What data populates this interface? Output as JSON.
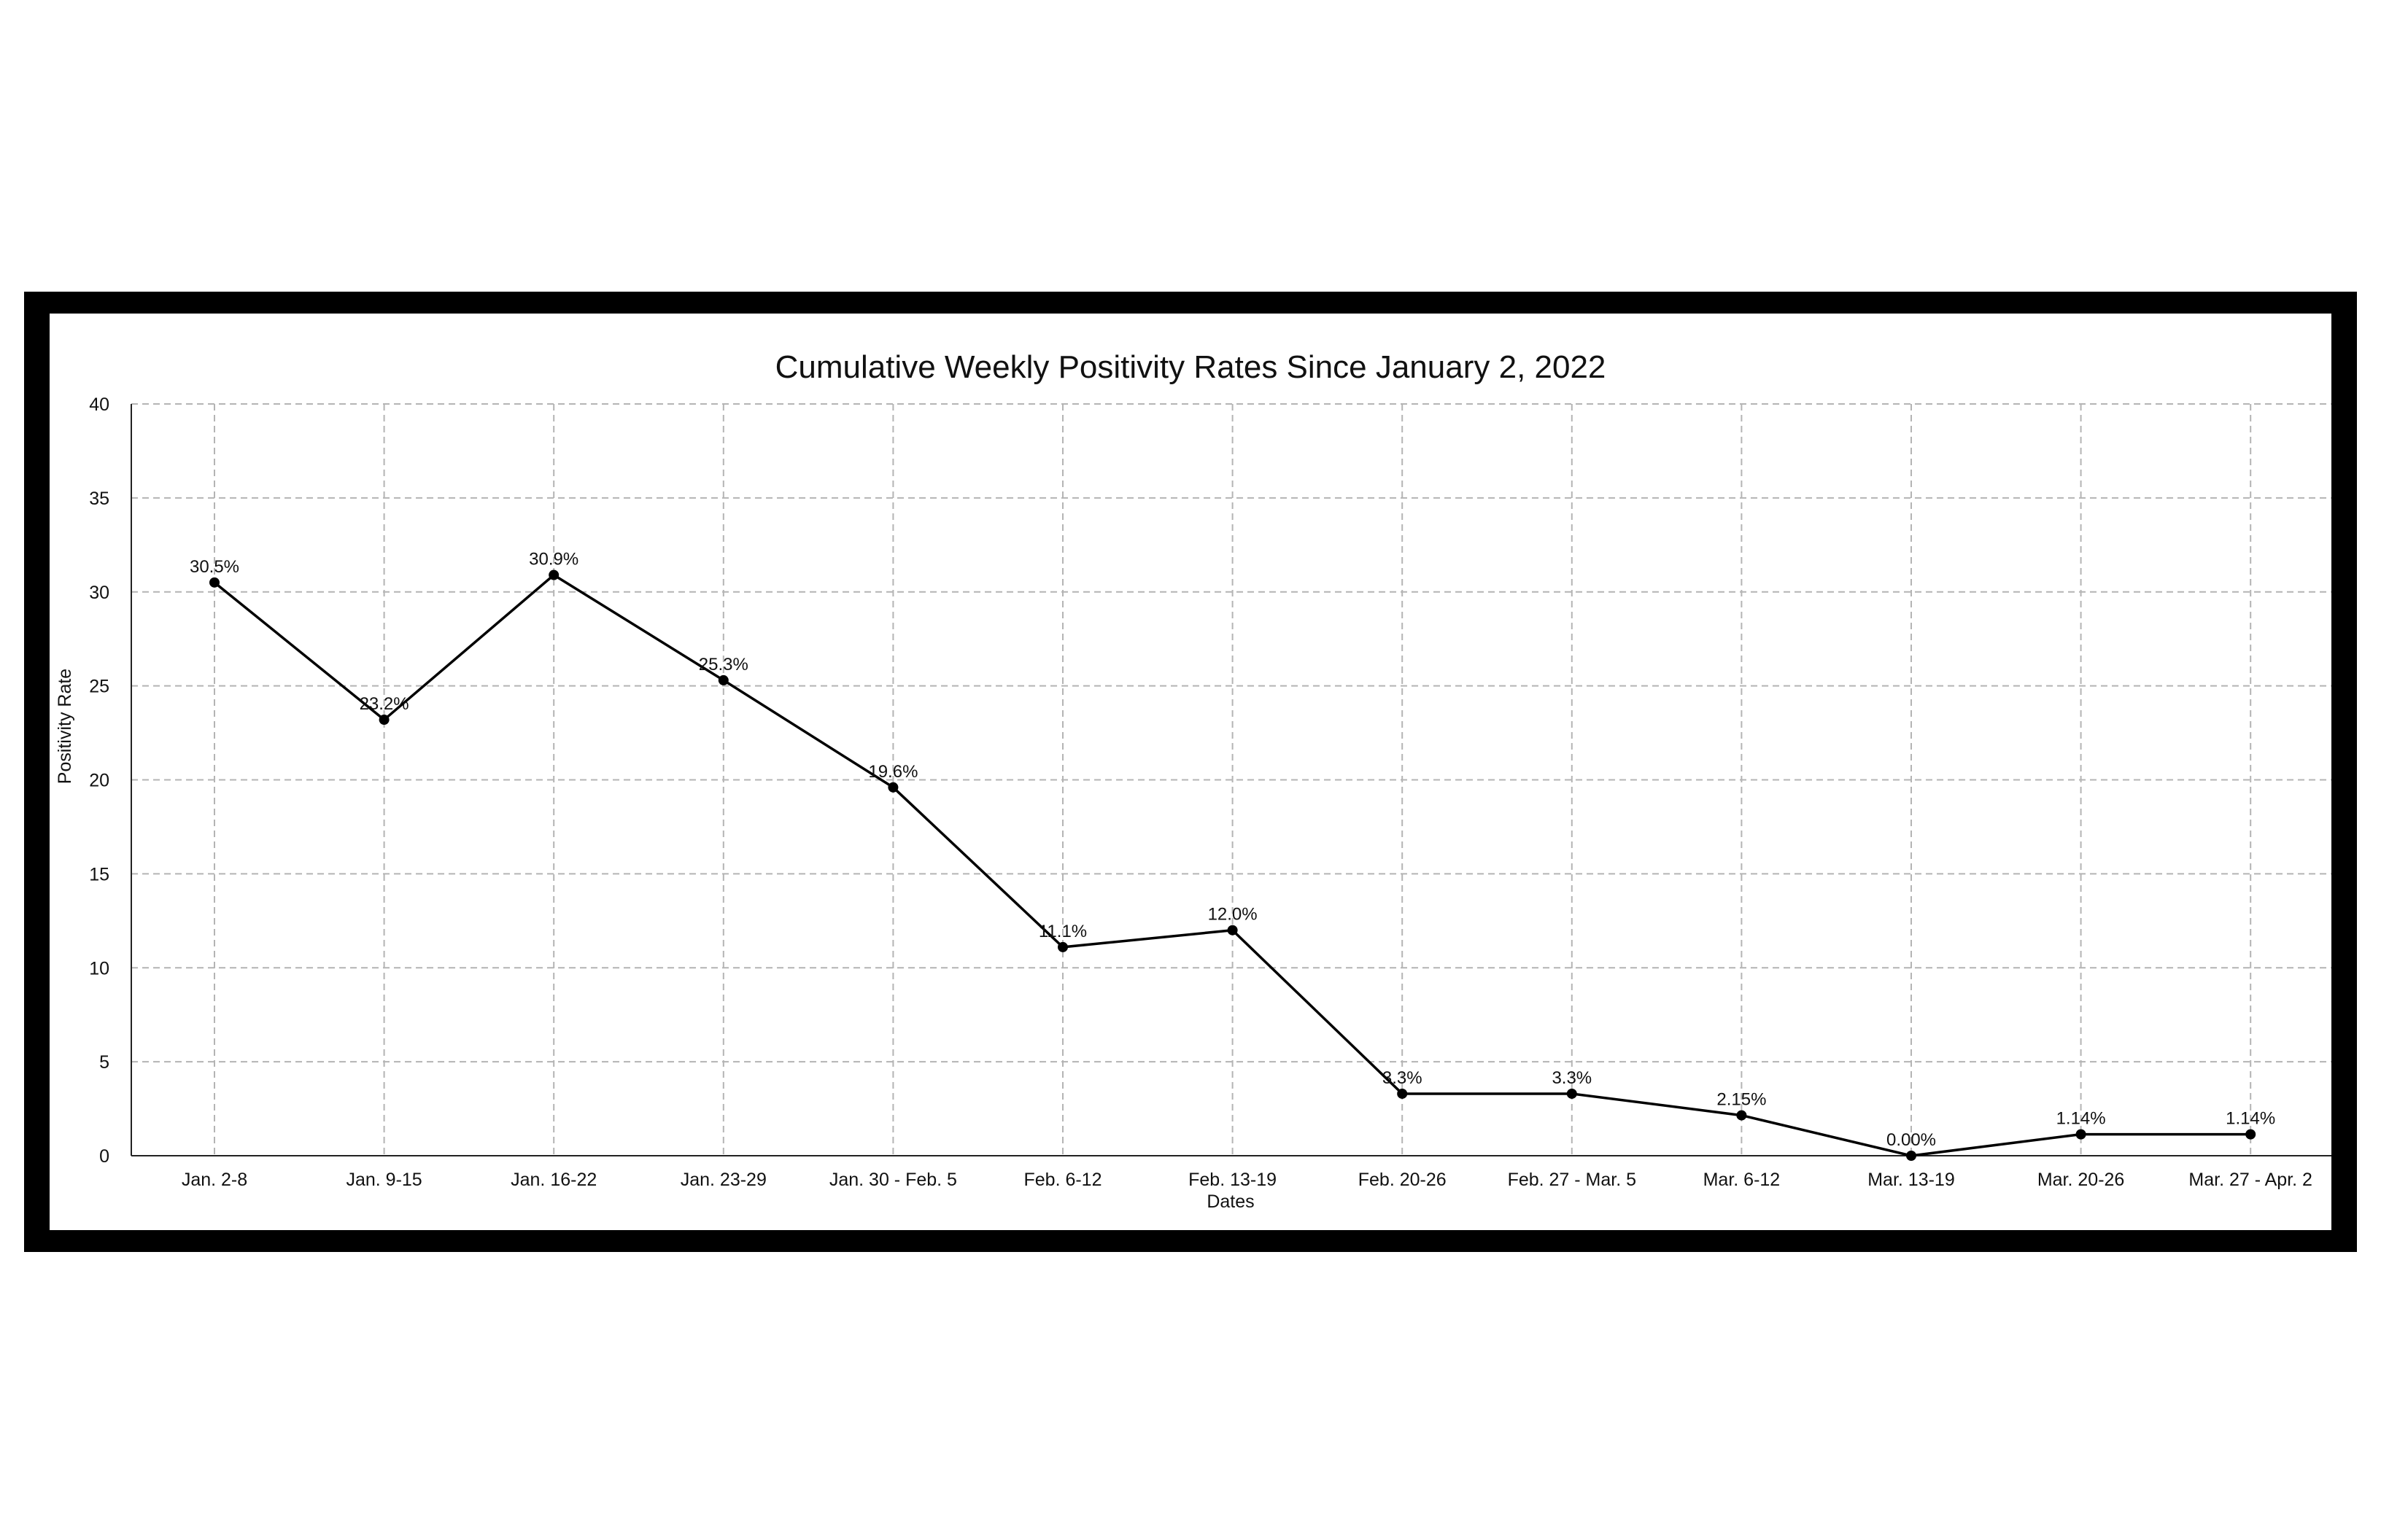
{
  "chart_data": {
    "type": "line",
    "title": "Cumulative Weekly Positivity Rates Since January 2, 2022",
    "xlabel": "Dates",
    "ylabel": "Positivity Rate",
    "categories": [
      "Jan. 2-8",
      "Jan. 9-15",
      "Jan. 16-22",
      "Jan. 23-29",
      "Jan. 30 - Feb. 5",
      "Feb. 6-12",
      "Feb. 13-19",
      "Feb. 20-26",
      "Feb. 27 - Mar. 5",
      "Mar. 6-12",
      "Mar. 13-19",
      "Mar. 20-26",
      "Mar. 27 - Apr. 2"
    ],
    "series": [
      {
        "values": [
          30.5,
          23.2,
          30.9,
          25.3,
          19.6,
          11.1,
          12.0,
          3.3,
          3.3,
          2.15,
          0.0,
          1.14,
          1.14
        ],
        "labels": [
          "30.5%",
          "23.2%",
          "30.9%",
          "25.3%",
          "19.6%",
          "11.1%",
          "12.0%",
          "3.3%",
          "3.3%",
          "2.15%",
          "0.00%",
          "1.14%",
          "1.14%"
        ]
      }
    ],
    "ylim": [
      0,
      40
    ],
    "yticks": [
      "0",
      "5",
      "10",
      "15",
      "20",
      "25",
      "30",
      "35",
      "40"
    ],
    "grid": true,
    "legend": "none",
    "colors": {
      "line": "#000000",
      "grid": "#b4b4b4",
      "frame": "#000000"
    }
  }
}
